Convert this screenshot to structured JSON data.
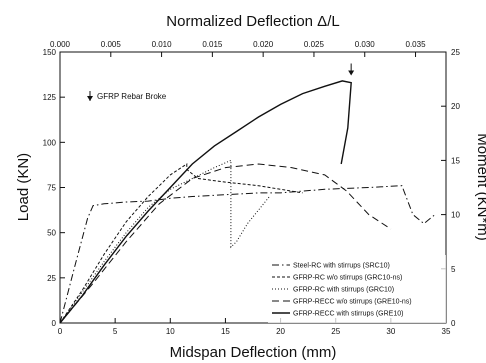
{
  "chart_data": {
    "type": "line",
    "title": "",
    "top_axis": {
      "label": "Normalized Deflection Δ/L",
      "ticks": [
        "0.000",
        "0.005",
        "0.010",
        "0.015",
        "0.020",
        "0.025",
        "0.030",
        "0.035"
      ],
      "tick_values": [
        0.0,
        0.005,
        0.01,
        0.015,
        0.02,
        0.025,
        0.03,
        0.035
      ],
      "range": [
        0,
        0.038
      ]
    },
    "xlabel": "Midspan Deflection (mm)",
    "x_ticks": [
      "0",
      "5",
      "10",
      "15",
      "20",
      "25",
      "30",
      "35"
    ],
    "xlim": [
      0,
      35
    ],
    "ylabel": "Load (KN)",
    "y_ticks": [
      "0",
      "25",
      "50",
      "75",
      "100",
      "125",
      "150"
    ],
    "ylim": [
      0,
      150
    ],
    "right_axis": {
      "label": "Moment (KN*m)",
      "ticks": [
        "0",
        "5",
        "10",
        "15",
        "20",
        "25"
      ],
      "range": [
        0,
        25
      ]
    },
    "annotation": {
      "text": "GFRP Rebar Broke",
      "x": 26.4,
      "y": 137
    },
    "legend_position": "bottom-right",
    "series": [
      {
        "name": "Steel-RC with stirrups (SRC10)",
        "style": "dash-dot",
        "x": [
          0,
          1.5,
          2.5,
          3,
          4,
          6,
          8,
          10,
          12,
          15,
          18,
          20,
          24,
          28,
          31,
          32,
          33,
          34
        ],
        "y": [
          0,
          35,
          58,
          65,
          66,
          67,
          67.5,
          69,
          70,
          71,
          72,
          72,
          74,
          75,
          76,
          60,
          55,
          60
        ]
      },
      {
        "name": "GFRP-RC w/o stirrups (GRC10-ns)",
        "style": "short-dash",
        "x": [
          0,
          2,
          4,
          6,
          8,
          9,
          10,
          11,
          11.5,
          11.5,
          12.5,
          15,
          18,
          20,
          22
        ],
        "y": [
          0,
          18,
          38,
          56,
          70,
          76,
          82,
          86,
          88,
          85,
          80,
          78,
          76,
          74,
          72
        ]
      },
      {
        "name": "GFRP-RC with stirrups (GRC10)",
        "style": "dotted",
        "x": [
          0,
          2,
          4,
          6,
          8,
          10,
          12,
          14,
          15.5,
          15.5,
          16,
          17,
          19
        ],
        "y": [
          0,
          17,
          34,
          50,
          64,
          74,
          80,
          86,
          90,
          42,
          45,
          55,
          70
        ]
      },
      {
        "name": "GFRP-RECC w/o stirrups (GRE10-ns)",
        "style": "long-dash",
        "x": [
          0,
          3,
          6,
          9,
          12,
          15,
          18,
          21,
          24,
          26,
          28,
          30
        ],
        "y": [
          0,
          22,
          45,
          66,
          80,
          86,
          88,
          86,
          82,
          73,
          60,
          52
        ]
      },
      {
        "name": "GFRP-RECC with stirrups (GRE10)",
        "style": "solid",
        "x": [
          0,
          2,
          4,
          6,
          8,
          10,
          12,
          14,
          16,
          18,
          20,
          22,
          24,
          25.6,
          26.4,
          26.1,
          25.5
        ],
        "y": [
          0,
          15,
          32,
          48,
          62,
          75,
          88,
          98,
          106,
          114,
          121,
          127,
          131,
          134,
          133,
          108,
          88
        ]
      }
    ]
  }
}
